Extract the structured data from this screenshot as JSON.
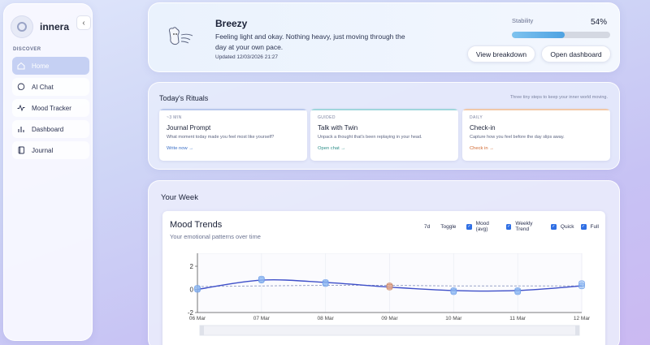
{
  "brand": {
    "name": "innera",
    "collapse_icon": "chevron-left-icon"
  },
  "sidebar": {
    "section": "DISCOVER",
    "items": [
      {
        "label": "Home",
        "icon": "home-icon",
        "active": true
      },
      {
        "label": "AI Chat",
        "icon": "chat-bubble-icon",
        "active": false
      },
      {
        "label": "Mood Tracker",
        "icon": "activity-icon",
        "active": false
      },
      {
        "label": "Dashboard",
        "icon": "bar-chart-icon",
        "active": false
      },
      {
        "label": "Journal",
        "icon": "book-icon",
        "active": false
      }
    ]
  },
  "hero": {
    "mood": "Breezy",
    "description": "Feeling light and okay. Nothing heavy, just moving through the day at your own pace.",
    "updated": "Updated 12/03/2026 21:27",
    "stability_label": "Stability",
    "stability_value": "54%",
    "stability_fraction": 0.54,
    "btn_breakdown": "View breakdown",
    "btn_dashboard": "Open dashboard"
  },
  "rituals": {
    "title": "Today's Rituals",
    "subtitle": "Three tiny steps to keep your inner world moving.",
    "cards": [
      {
        "tag": "~3 MIN",
        "title": "Journal Prompt",
        "desc": "What moment today made you feel most like yourself?",
        "link": "Write now →",
        "accent": "#b9c8ec",
        "link_color": "#3a6fc6"
      },
      {
        "tag": "GUIDED",
        "title": "Talk with Twin",
        "desc": "Unpack a thought that's been replaying in your head.",
        "link": "Open chat →",
        "accent": "#9fd6dc",
        "link_color": "#2f8f8a"
      },
      {
        "tag": "DAILY",
        "title": "Check-in",
        "desc": "Capture how you feel before the day slips away.",
        "link": "Check in →",
        "accent": "#f1c8a8",
        "link_color": "#d0672f"
      }
    ]
  },
  "week": {
    "title": "Your Week",
    "chart_title": "Mood Trends",
    "chart_subtitle": "Your emotional patterns over time",
    "range": "7d",
    "toggle": "Toggle",
    "checkboxes": [
      "Mood (avg)",
      "Weekly Trend",
      "Quick",
      "Full"
    ]
  },
  "chart_data": {
    "type": "line",
    "x": [
      "06 Mar",
      "07 Mar",
      "08 Mar",
      "09 Mar",
      "10 Mar",
      "11 Mar",
      "12 Mar"
    ],
    "ylim": [
      -2,
      2
    ],
    "yticks": [
      2,
      0,
      -2
    ],
    "series": [
      {
        "name": "Mood (avg)",
        "values": [
          0.0,
          0.8,
          0.6,
          0.2,
          -0.1,
          -0.1,
          0.3
        ],
        "color": "#3e4fc9"
      },
      {
        "name": "Weekly Trend",
        "values": [
          0.25,
          0.3,
          0.35,
          0.35,
          0.3,
          0.3,
          0.3
        ],
        "color": "#9aa3c8"
      },
      {
        "name": "Quick",
        "values": [
          0.0,
          0.8,
          0.6,
          0.3,
          -0.1,
          -0.1,
          0.3
        ],
        "color": "#8db8f2"
      },
      {
        "name": "Full",
        "values": [
          0.1,
          0.9,
          0.5,
          0.2,
          -0.2,
          -0.2,
          0.5
        ],
        "color": "#8db8f2"
      }
    ],
    "highlight_point": {
      "x": "09 Mar",
      "color": "#e8a98a"
    }
  }
}
